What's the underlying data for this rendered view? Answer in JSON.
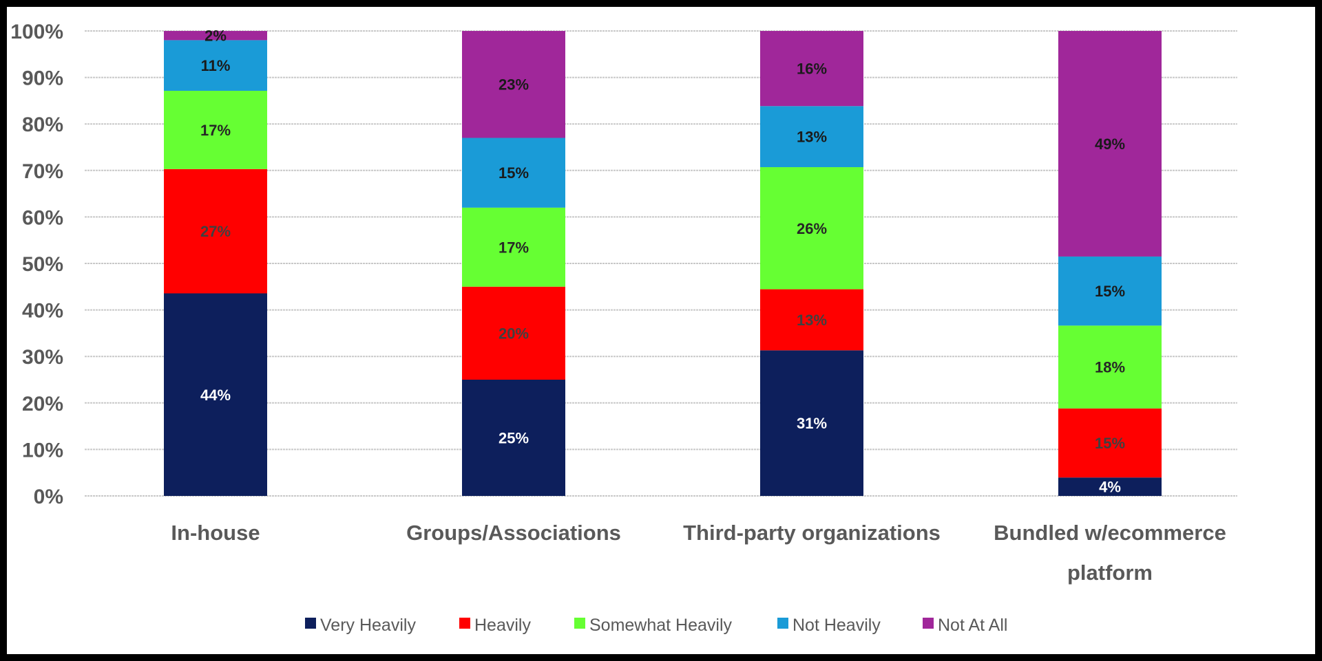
{
  "chart_data": {
    "type": "bar",
    "stacked": true,
    "percent_stacked": true,
    "categories": [
      "In-house",
      "Groups/Associations",
      "Third-party organizations",
      "Bundled w/ecommerce platform"
    ],
    "category_lines": [
      [
        "In-house"
      ],
      [
        "Groups/Associations"
      ],
      [
        "Third-party organizations"
      ],
      [
        "Bundled w/ecommerce",
        "platform"
      ]
    ],
    "series": [
      {
        "name": "Very Heavily",
        "color": "#0d1f5c",
        "label_color": "#ffffff",
        "values": [
          44,
          25,
          31,
          4
        ]
      },
      {
        "name": "Heavily",
        "color": "#ff0000",
        "label_color": "#404040",
        "values": [
          27,
          20,
          13,
          15
        ]
      },
      {
        "name": "Somewhat Heavily",
        "color": "#66ff33",
        "label_color": "#262626",
        "values": [
          17,
          17,
          26,
          18
        ]
      },
      {
        "name": "Not Heavily",
        "color": "#1a9bd7",
        "label_color": "#1a1a1a",
        "values": [
          11,
          15,
          13,
          15
        ]
      },
      {
        "name": "Not At All",
        "color": "#a0279a",
        "label_color": "#1a1a1a",
        "values": [
          2,
          23,
          16,
          49
        ]
      }
    ],
    "ylim": [
      0,
      100
    ],
    "yticks": [
      "0%",
      "10%",
      "20%",
      "30%",
      "40%",
      "50%",
      "60%",
      "70%",
      "80%",
      "90%",
      "100%"
    ],
    "grid": true,
    "legend": "bottom",
    "title": "",
    "xlabel": "",
    "ylabel": ""
  }
}
